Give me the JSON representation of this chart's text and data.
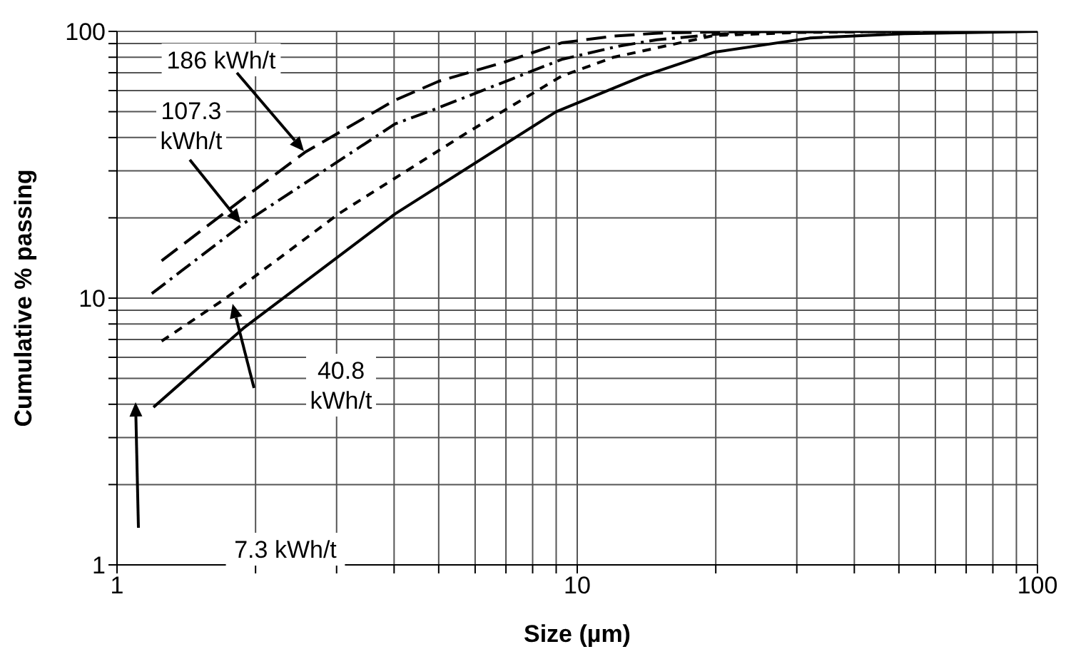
{
  "chart_data": {
    "type": "line",
    "xlabel": "Size (µm)",
    "ylabel": "Cumulative % passing",
    "log": "xy",
    "grid": true,
    "legend": false,
    "marker": "none",
    "xlim": [
      1,
      100
    ],
    "ylim": [
      1,
      100
    ],
    "xticks": [
      1,
      {
        "value": 2,
        "label": null
      },
      {
        "value": 3,
        "label": null
      },
      {
        "value": 4,
        "label": null
      },
      {
        "value": 5,
        "label": null
      },
      {
        "value": 6,
        "label": null
      },
      {
        "value": 7,
        "label": null
      },
      {
        "value": 8,
        "label": null
      },
      {
        "value": 9,
        "label": null
      },
      10,
      {
        "value": 20,
        "label": null
      },
      {
        "value": 30,
        "label": null
      },
      {
        "value": 40,
        "label": null
      },
      {
        "value": 50,
        "label": null
      },
      {
        "value": 60,
        "label": null
      },
      {
        "value": 70,
        "label": null
      },
      {
        "value": 80,
        "label": null
      },
      {
        "value": 90,
        "label": null
      },
      100
    ],
    "yticks": [
      1,
      {
        "value": 2,
        "label": null
      },
      {
        "value": 3,
        "label": null
      },
      {
        "value": 4,
        "label": null
      },
      {
        "value": 5,
        "label": null
      },
      {
        "value": 6,
        "label": null
      },
      {
        "value": 7,
        "label": null
      },
      {
        "value": 8,
        "label": null
      },
      {
        "value": 9,
        "label": null
      },
      10,
      {
        "value": 20,
        "label": null
      },
      {
        "value": 30,
        "label": null
      },
      {
        "value": 40,
        "label": null
      },
      {
        "value": 50,
        "label": null
      },
      {
        "value": 60,
        "label": null
      },
      {
        "value": 70,
        "label": null
      },
      {
        "value": 80,
        "label": null
      },
      {
        "value": 90,
        "label": null
      },
      100
    ],
    "series": [
      {
        "color": "#000000",
        "line_style": "dashed",
        "x": [
          1.25,
          2,
          2.56,
          4,
          5,
          7,
          9.25,
          12,
          15,
          20,
          30,
          100
        ],
        "values": [
          13.8,
          25.6,
          35.2,
          55,
          65,
          77,
          90.6,
          96,
          98.5,
          99.5,
          100,
          100
        ]
      },
      {
        "color": "#000000",
        "line_style": "dashed",
        "x": [
          1.19,
          1.88,
          4.02,
          4.75,
          9.25,
          12.3,
          14.9,
          20,
          25,
          100
        ],
        "values": [
          10.4,
          19,
          45,
          50,
          78.5,
          88,
          93,
          97.5,
          99.5,
          100
        ]
      },
      {
        "color": "#000000",
        "line_style": "dashed",
        "x": [
          1.25,
          1.71,
          3.03,
          5.76,
          9.25,
          12,
          19.8,
          30,
          50,
          100
        ],
        "values": [
          6.9,
          9.9,
          20.7,
          41.7,
          68,
          80,
          96.5,
          99,
          100,
          100
        ]
      },
      {
        "color": "#000000",
        "line_style": "solid",
        "x": [
          1.2,
          1.88,
          4.02,
          9,
          13.9,
          19.8,
          32,
          51.5,
          100
        ],
        "values": [
          3.9,
          7.7,
          20.7,
          50,
          68,
          83.5,
          94.4,
          98,
          100
        ]
      }
    ],
    "annotations": [
      "186 kWh/t",
      {
        "text": "107.3 kWh/t",
        "x": 1.86,
        "y": 19
      },
      "40.8 kWh/t",
      "7.3 kWh/t"
    ]
  }
}
